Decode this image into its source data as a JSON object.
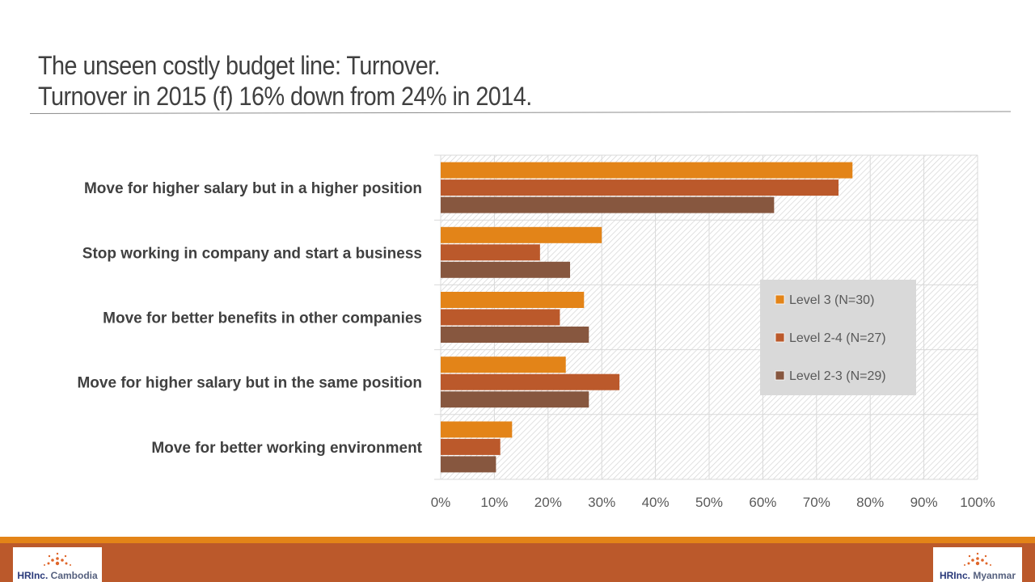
{
  "slide": {
    "title_line1": "The unseen costly budget line:  Turnover.",
    "title_line2": "Turnover in 2015 (f) 16% down from 24% in 2014."
  },
  "footer": {
    "left_logo": {
      "brand": "HRInc.",
      "place": "Cambodia"
    },
    "right_logo": {
      "brand": "HRInc.",
      "place": "Myanmar"
    },
    "stripe_color": "#e38418",
    "band_color": "#bb592b"
  },
  "chart_data": {
    "type": "bar",
    "orientation": "horizontal",
    "title": "",
    "xlabel": "",
    "ylabel": "",
    "categories": [
      "Move for higher salary but in a higher position",
      "Stop working in company and start a business",
      "Move for better benefits in other companies",
      "Move for higher salary but in the same position",
      "Move for better working environment"
    ],
    "series": [
      {
        "name": "Level 3 (N=30)",
        "color": "#e38418",
        "values": [
          76.7,
          30.0,
          26.7,
          23.3,
          13.3
        ]
      },
      {
        "name": "Level 2-4 (N=27)",
        "color": "#bb592b",
        "values": [
          74.1,
          18.5,
          22.2,
          33.3,
          11.1
        ]
      },
      {
        "name": "Level 2-3 (N=29)",
        "color": "#87573f",
        "values": [
          62.1,
          24.1,
          27.6,
          27.6,
          10.3
        ]
      }
    ],
    "xlim": [
      0,
      100
    ],
    "xticks": [
      "0%",
      "10%",
      "20%",
      "30%",
      "40%",
      "50%",
      "60%",
      "70%",
      "80%",
      "90%",
      "100%"
    ],
    "grid": true,
    "background": "diagonal-hatch",
    "legend": {
      "placement": "right-center",
      "background": "#d9d9d9"
    }
  }
}
